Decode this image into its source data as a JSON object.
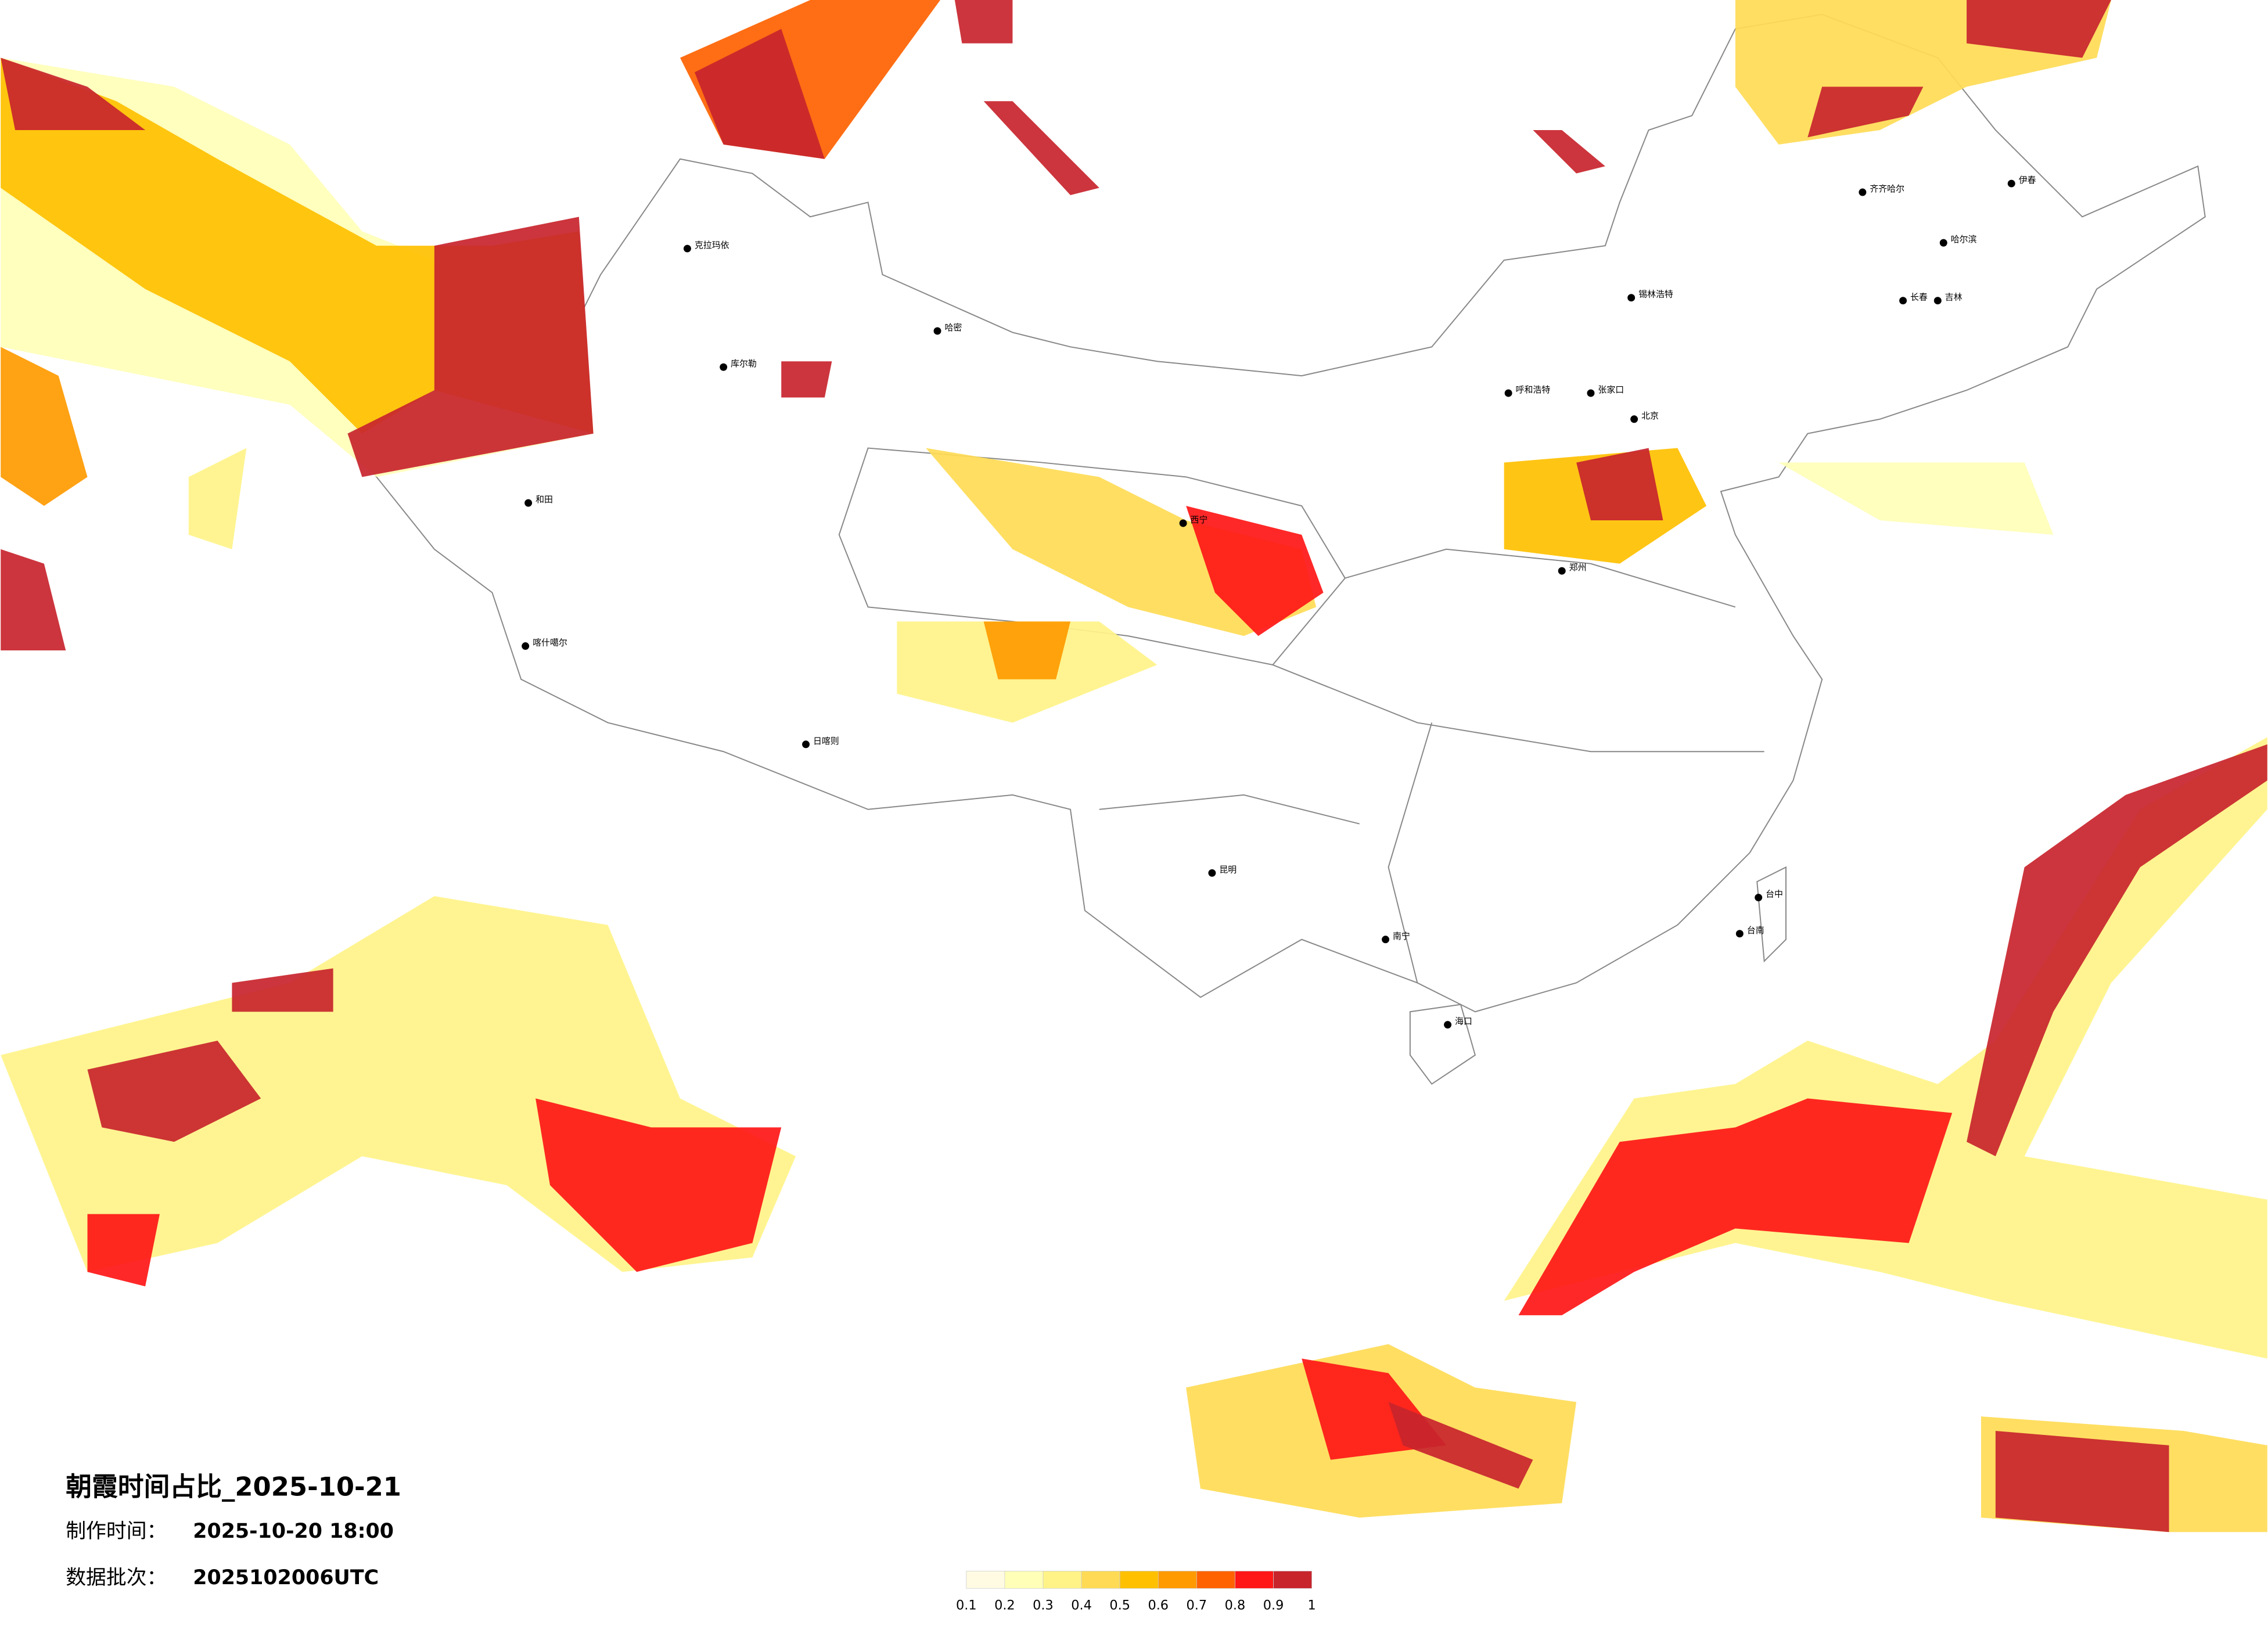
{
  "header": {
    "title": "朝霞时间占比_2025-10-21",
    "made_label": "制作时间：",
    "made_time": "2025-10-20 18:00",
    "batch_label": "数据批次：",
    "batch": "2025102006UTC"
  },
  "legend": {
    "ticks": [
      0.1,
      0.2,
      0.3,
      0.4,
      0.5,
      0.6,
      0.7,
      0.8,
      0.9,
      1
    ],
    "colors": [
      "#fffbe3",
      "#ffffb8",
      "#fff388",
      "#ffdb55",
      "#ffc000",
      "#ff9a00",
      "#ff6200",
      "#ff1616",
      "#c8242c"
    ]
  },
  "cities": [
    "克拉玛依",
    "库尔勒",
    "哈密",
    "和田",
    "喀什噶尔",
    "日喀则",
    "西宁",
    "呼和浩特",
    "锡林浩特",
    "张家口",
    "北京",
    "郑州",
    "齐齐哈尔",
    "哈尔滨",
    "长春",
    "吉林",
    "伊春",
    "昆明",
    "南宁",
    "海口",
    "台中",
    "台南"
  ]
}
